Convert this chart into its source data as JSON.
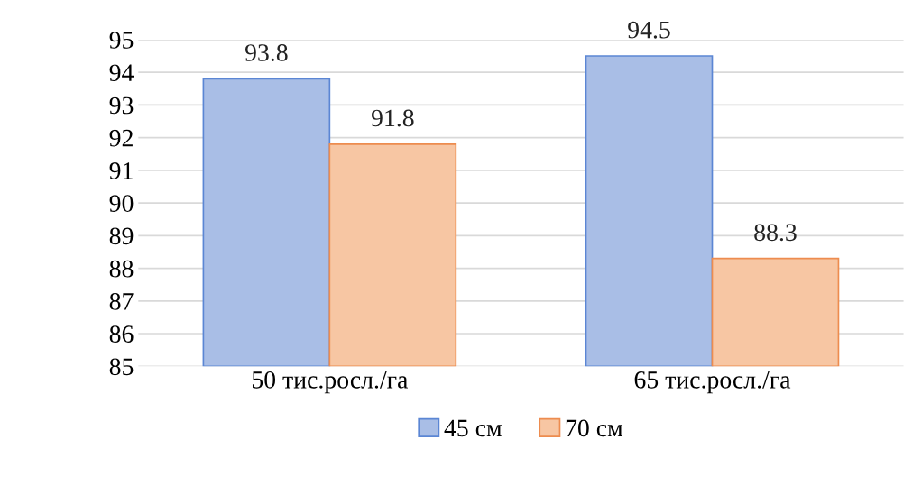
{
  "chart_data": {
    "type": "bar",
    "categories": [
      "50 тис.росл./га",
      "65 тис.росл./га"
    ],
    "series": [
      {
        "name": "45 см",
        "color": "#a9bee6",
        "values": [
          93.8,
          94.5
        ]
      },
      {
        "name": "70 см",
        "color": "#f7c6a3",
        "values": [
          91.8,
          88.3
        ]
      }
    ],
    "ylim": [
      85,
      95
    ],
    "yticks": [
      85,
      86,
      87,
      88,
      89,
      90,
      91,
      92,
      93,
      94,
      95
    ],
    "grid": "y",
    "legend": "bottom",
    "data_labels": true
  }
}
